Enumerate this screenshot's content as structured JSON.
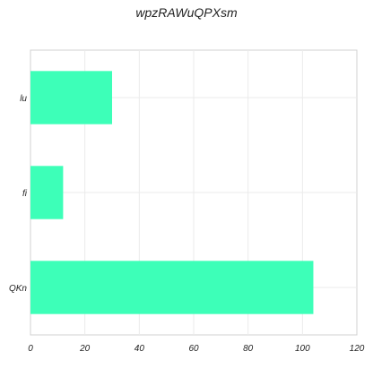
{
  "chart_data": {
    "type": "bar",
    "orientation": "horizontal",
    "title": "wpzRAWuQPXsm",
    "xlabel": "",
    "ylabel": "",
    "categories": [
      "QKn",
      "fi",
      "lu"
    ],
    "values": [
      104,
      12,
      30
    ],
    "xlim": [
      0,
      120
    ],
    "xticks": [
      "0",
      "20",
      "40",
      "60",
      "80",
      "100",
      "120"
    ],
    "grid": true,
    "legend": "none",
    "bar_color": "#3dffb8"
  }
}
